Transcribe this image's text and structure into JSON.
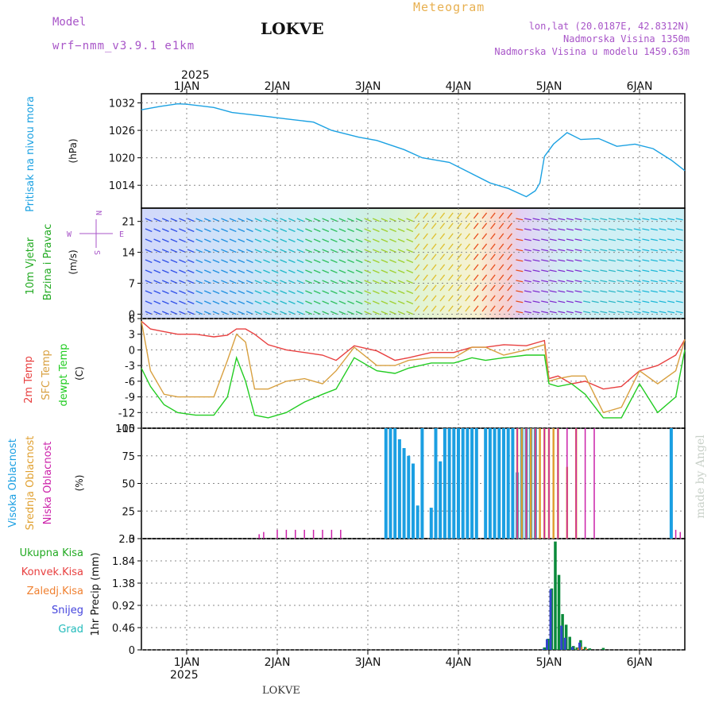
{
  "header": {
    "model_label": "Model",
    "model_name": "wrf−nmm_v3.9.1  e1km",
    "station": "LOKVE",
    "product": "Meteogram",
    "coords": "lon,lat (20.0187E, 42.8312N)",
    "elevation": "Nadmorska Visina 1350m",
    "model_elevation": "Nadmorska Visina u modelu 1459.63m",
    "watermark": "made by Angel",
    "footer_station": "LOKVE"
  },
  "colors": {
    "pressure": "#1ba1e2",
    "temp2m": "#e84040",
    "sfc": "#d8a040",
    "dewpt": "#22cc22",
    "high_cloud": "#1b9fe2",
    "mid_cloud": "#e0a030",
    "low_cloud": "#cc22aa",
    "total_precip": "#0a8a3a",
    "snow": "#3344cc",
    "header_purple": "#a855c8",
    "header_gold": "#e8b050"
  },
  "time_axis": {
    "year": "2025",
    "days": [
      "1JAN",
      "2JAN",
      "3JAN",
      "4JAN",
      "5JAN",
      "6JAN"
    ],
    "x_min": -0.5,
    "x_max": 5.5
  },
  "panels": {
    "pressure": {
      "title": "Pritisak na nivou mora",
      "unit": "(hPa)"
    },
    "wind": {
      "title1": "10m Vjetar",
      "title2": "Brzina i Pravac",
      "unit": "(m/s)",
      "compass_n": "N",
      "compass_w": "W",
      "compass_e": "E",
      "compass_s": "S"
    },
    "temp": {
      "title1": "2m Temp",
      "title2": "SFC Temp",
      "title3": "dewpt Temp",
      "unit": "(C)"
    },
    "cloud": {
      "title1": "Visoka Oblacnost",
      "title2": "Srednja Oblacnost",
      "title3": "Niska Oblacnost",
      "unit": "(%)"
    },
    "precip": {
      "unit": "1hr Precip (mm)",
      "legend": [
        "Ukupna Kisa",
        "Konvek.Kisa",
        "Zaledj.Kisa",
        "Snijeg",
        "Grad"
      ],
      "legend_colors": [
        "#22aa22",
        "#e84040",
        "#f08030",
        "#4444dd",
        "#22bbbb"
      ]
    }
  },
  "chart_data": [
    {
      "type": "line",
      "title": "Pritisak na nivou mora",
      "ylabel": "(hPa)",
      "ylim": [
        1009,
        1034
      ],
      "yticks": [
        "1014",
        "1020",
        "1026",
        "1032"
      ],
      "grid": true,
      "x": [
        -0.5,
        -0.3,
        -0.1,
        0.0,
        0.3,
        0.5,
        0.9,
        1.1,
        1.4,
        1.6,
        1.9,
        2.1,
        2.4,
        2.6,
        2.9,
        3.1,
        3.35,
        3.55,
        3.75,
        3.85,
        3.9,
        3.95,
        4.05,
        4.2,
        4.35,
        4.55,
        4.75,
        4.95,
        5.15,
        5.35,
        5.5
      ],
      "series": [
        {
          "values": [
            1030.5,
            1031.2,
            1031.8,
            1031.7,
            1031.0,
            1029.9,
            1029.0,
            1028.5,
            1027.8,
            1026.0,
            1024.5,
            1023.8,
            1021.8,
            1020.0,
            1019.0,
            1017.0,
            1014.5,
            1013.3,
            1011.5,
            1012.8,
            1014.5,
            1020.3,
            1023.0,
            1025.5,
            1024.0,
            1024.2,
            1022.5,
            1023.0,
            1022.0,
            1019.5,
            1017.2
          ]
        }
      ]
    },
    {
      "type": "scatter",
      "title": "10m Vjetar Brzina i Pravac",
      "ylabel": "(m/s)",
      "ylim": [
        -1,
        24
      ],
      "yticks": [
        "0",
        "7",
        "14",
        "21"
      ],
      "grid": true
    },
    {
      "type": "line",
      "title": "2m Temp / SFC Temp / dewpt Temp",
      "ylabel": "(C)",
      "ylim": [
        -15,
        6
      ],
      "yticks": [
        "-15",
        "-12",
        "-9",
        "-6",
        "-3",
        "0",
        "3",
        "6"
      ],
      "grid": true,
      "x": [
        -0.5,
        -0.4,
        -0.25,
        -0.1,
        0.1,
        0.3,
        0.45,
        0.55,
        0.65,
        0.75,
        0.9,
        1.1,
        1.3,
        1.5,
        1.65,
        1.85,
        2.1,
        2.3,
        2.45,
        2.7,
        2.95,
        3.15,
        3.3,
        3.5,
        3.75,
        3.95,
        4.0,
        4.1,
        4.25,
        4.4,
        4.6,
        4.8,
        5.0,
        5.2,
        5.4,
        5.5
      ],
      "series": [
        {
          "name": "2m Temp",
          "values": [
            5.5,
            4.0,
            3.5,
            3.0,
            3.0,
            2.5,
            2.8,
            4.0,
            4.0,
            3.0,
            1.0,
            0.0,
            -0.5,
            -1.0,
            -2.0,
            0.8,
            -0.2,
            -2.0,
            -1.5,
            -0.5,
            -0.5,
            0.5,
            0.5,
            1.0,
            0.8,
            1.8,
            -5.5,
            -5.0,
            -6.5,
            -6.0,
            -7.5,
            -7.0,
            -4.0,
            -3.0,
            -1.0,
            2.0
          ]
        },
        {
          "name": "SFC Temp",
          "values": [
            5.5,
            -4.0,
            -8.5,
            -9.0,
            -9.0,
            -9.0,
            -2.0,
            3.0,
            1.5,
            -7.5,
            -7.5,
            -6.0,
            -5.5,
            -6.5,
            -4.0,
            0.5,
            -3.0,
            -3.0,
            -2.0,
            -1.5,
            -1.5,
            0.5,
            0.5,
            -1.0,
            0.0,
            1.0,
            -6.0,
            -5.5,
            -5.0,
            -5.0,
            -12.0,
            -11.0,
            -4.0,
            -6.5,
            -4.0,
            2.0
          ]
        },
        {
          "name": "dewpt Temp",
          "values": [
            -3.5,
            -7.0,
            -10.5,
            -12.0,
            -12.5,
            -12.5,
            -9.0,
            -1.5,
            -6.0,
            -12.5,
            -13.0,
            -12.0,
            -10.0,
            -8.5,
            -7.5,
            -1.5,
            -4.0,
            -4.5,
            -3.5,
            -2.5,
            -2.5,
            -1.5,
            -2.0,
            -1.5,
            -1.0,
            -1.0,
            -6.5,
            -7.0,
            -6.5,
            -8.5,
            -13.0,
            -13.0,
            -6.5,
            -12.0,
            -9.0,
            0.0
          ]
        }
      ]
    },
    {
      "type": "bar",
      "title": "Visoka / Srednja / Niska Oblacnost",
      "ylabel": "(%)",
      "ylim": [
        0,
        100
      ],
      "yticks": [
        "0",
        "25",
        "50",
        "75",
        "100"
      ],
      "grid": true,
      "series": [
        {
          "name": "Visoka Oblacnost",
          "x": [
            2.2,
            2.25,
            2.3,
            2.35,
            2.4,
            2.45,
            2.5,
            2.55,
            2.6,
            2.7,
            2.75,
            2.8,
            2.85,
            2.9,
            2.95,
            3.0,
            3.05,
            3.1,
            3.15,
            3.2,
            3.3,
            3.35,
            3.4,
            3.45,
            3.5,
            3.55,
            3.6,
            3.65,
            3.7,
            3.75,
            3.8,
            3.85,
            5.35
          ],
          "values": [
            100,
            100,
            100,
            90,
            82,
            75,
            68,
            30,
            100,
            28,
            100,
            70,
            100,
            100,
            100,
            100,
            100,
            100,
            100,
            100,
            100,
            100,
            100,
            100,
            100,
            100,
            100,
            60,
            100,
            100,
            100,
            100,
            100
          ]
        },
        {
          "name": "Srednja Oblacnost",
          "x": [
            3.65,
            3.7,
            3.75,
            3.8,
            3.85,
            3.9,
            3.95,
            4.0,
            4.05,
            4.1,
            4.2,
            4.3
          ],
          "values": [
            100,
            100,
            100,
            100,
            100,
            100,
            100,
            100,
            100,
            100,
            65,
            100
          ]
        },
        {
          "name": "Niska Oblacnost",
          "x": [
            0.8,
            0.85,
            1.0,
            1.1,
            1.2,
            1.3,
            1.4,
            1.5,
            1.6,
            1.7,
            3.65,
            3.75,
            3.85,
            3.95,
            4.0,
            4.1,
            4.2,
            4.3,
            4.4,
            4.5,
            5.4,
            5.45
          ],
          "values": [
            4,
            6,
            8,
            8,
            8,
            8,
            8,
            8,
            8,
            8,
            100,
            100,
            100,
            100,
            100,
            100,
            100,
            100,
            100,
            100,
            8,
            6
          ]
        }
      ]
    },
    {
      "type": "bar",
      "title": "1hr Precip",
      "ylabel": "1hr Precip (mm)",
      "ylim": [
        0,
        2.3
      ],
      "yticks": [
        "0",
        "0.46",
        "0.92",
        "1.38",
        "1.84",
        "2.3"
      ],
      "grid": true,
      "x": [
        3.95,
        3.99,
        4.03,
        4.07,
        4.11,
        4.15,
        4.19,
        4.23,
        4.27,
        4.31,
        4.35,
        4.4,
        4.45,
        4.6
      ],
      "series": [
        {
          "name": "Ukupna Kisa",
          "values": [
            0.05,
            0.23,
            1.27,
            2.24,
            1.55,
            0.74,
            0.52,
            0.27,
            0.08,
            0.05,
            0.2,
            0.06,
            0.03,
            0.04
          ]
        },
        {
          "name": "Snijeg",
          "values": [
            0.02,
            0.22,
            1.25,
            0,
            0,
            0.5,
            0.25,
            0,
            0.06,
            0,
            0.15,
            0,
            0,
            0
          ]
        },
        {
          "name": "Zaledj.Kisa",
          "values": [
            0,
            0,
            0,
            0,
            0,
            0,
            0,
            0,
            0,
            0.04,
            0.06,
            0.03,
            0,
            0
          ]
        }
      ]
    }
  ]
}
